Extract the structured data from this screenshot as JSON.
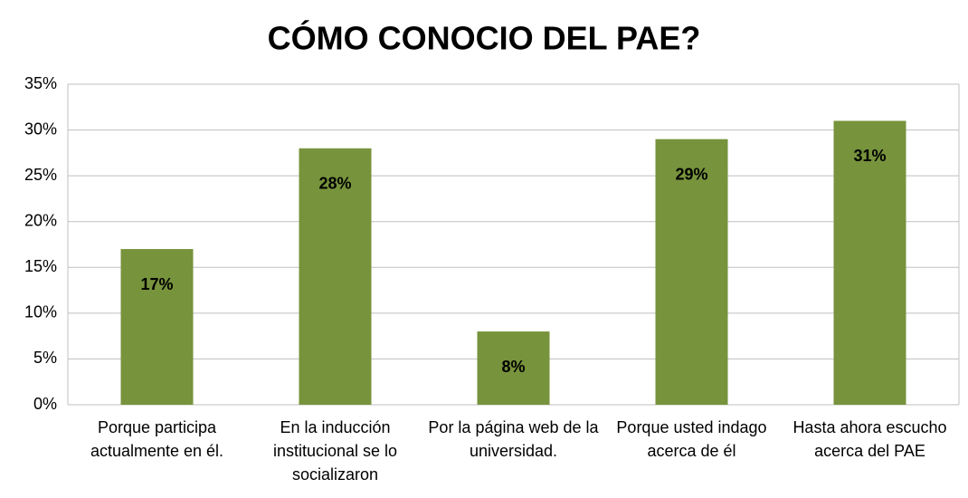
{
  "chart_data": {
    "type": "bar",
    "title": "CÓMO CONOCIO DEL PAE?",
    "categories": [
      "Porque participa actualmente en él.",
      "En la inducción institucional se lo socializaron",
      "Por la página web de la universidad.",
      "Porque usted indago acerca de él",
      "Hasta ahora escucho acerca del PAE"
    ],
    "values": [
      17,
      28,
      8,
      29,
      31
    ],
    "value_labels": [
      "17%",
      "28%",
      "8%",
      "29%",
      "31%"
    ],
    "color": "#77933c",
    "ylim": [
      0,
      35
    ],
    "yticks": [
      {
        "value": 0,
        "label": "0%"
      },
      {
        "value": 5,
        "label": "5%"
      },
      {
        "value": 10,
        "label": "10%"
      },
      {
        "value": 15,
        "label": "15%"
      },
      {
        "value": 20,
        "label": "20%"
      },
      {
        "value": 25,
        "label": "25%"
      },
      {
        "value": 30,
        "label": "30%"
      },
      {
        "value": 35,
        "label": "35%"
      }
    ],
    "grid": true
  }
}
